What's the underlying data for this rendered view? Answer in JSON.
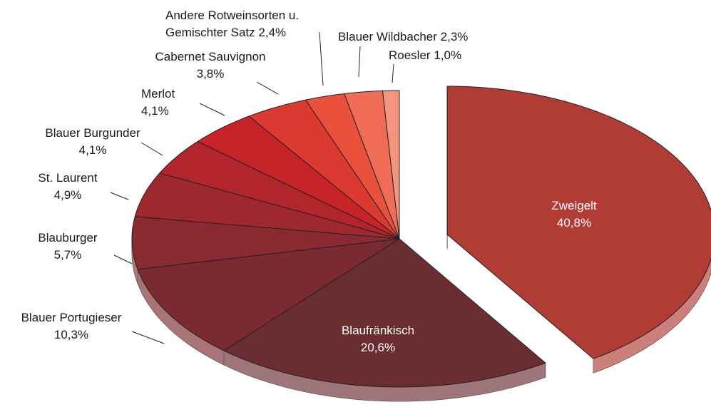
{
  "chart_data": {
    "type": "pie",
    "categories": [
      "Zweigelt",
      "Blaufränkisch",
      "Blauer Portugieser",
      "Blauburger",
      "St. Laurent",
      "Blauer Burgunder",
      "Merlot",
      "Cabernet Sauvignon",
      "Andere Rotweinsorten u. Gemischter Satz",
      "Blauer Wildbacher",
      "Roesler"
    ],
    "values": [
      40.8,
      20.6,
      10.3,
      5.7,
      4.9,
      4.1,
      4.1,
      3.8,
      2.4,
      2.3,
      1.0
    ],
    "value_labels": [
      "40,8%",
      "20,6%",
      "10,3%",
      "5,7%",
      "4,9%",
      "4,1%",
      "4,1%",
      "3,8%",
      "2,4%",
      "2,3%",
      "1,0%"
    ],
    "colors": [
      "#b13b35",
      "#6a2d32",
      "#7c2a31",
      "#8c2a31",
      "#9f272e",
      "#b2252c",
      "#c9232a",
      "#dc3a30",
      "#e9513d",
      "#ef6c56",
      "#f4967d"
    ],
    "exploded": [
      0
    ]
  }
}
